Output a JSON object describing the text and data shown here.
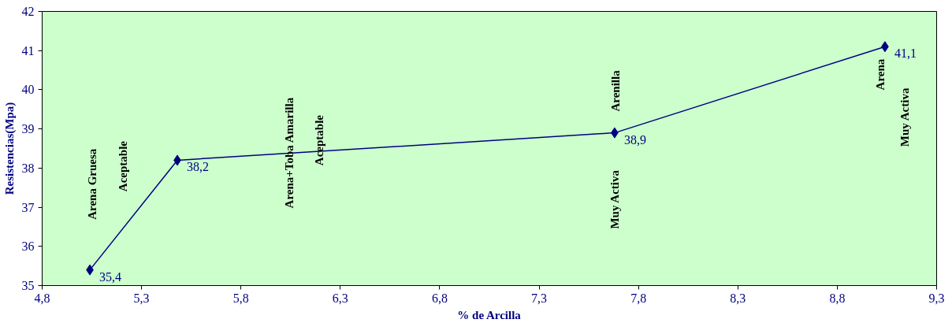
{
  "chart_data": {
    "type": "line",
    "xlabel": "% de Arcilla",
    "ylabel": "Resistencias(Mpa)",
    "x": [
      5.04,
      5.48,
      7.68,
      9.04
    ],
    "series": [
      {
        "color": "#000080",
        "values": [
          35.4,
          38.2,
          38.9,
          41.1
        ],
        "value_labels": [
          "35,4",
          "38,2",
          "38,9",
          "41,1"
        ]
      }
    ],
    "marker": "diamond",
    "line_style": "solid",
    "grid": false,
    "xlim": [
      4.8,
      9.3
    ],
    "xticks": [
      {
        "value": 4.8,
        "label": "4,8"
      },
      {
        "value": 5.3,
        "label": "5,3"
      },
      {
        "value": 5.8,
        "label": "5,8"
      },
      {
        "value": 6.3,
        "label": "6,3"
      },
      {
        "value": 6.8,
        "label": "6,8"
      },
      {
        "value": 7.3,
        "label": "7,3"
      },
      {
        "value": 7.8,
        "label": "7,8"
      },
      {
        "value": 8.3,
        "label": "8,3"
      },
      {
        "value": 8.8,
        "label": "8,8"
      },
      {
        "value": 9.3,
        "label": "9,3"
      }
    ],
    "ylim": [
      35,
      42
    ],
    "yticks": [
      35,
      36,
      37,
      38,
      39,
      40,
      41,
      42
    ],
    "annotations": [
      "Arena Gruesa",
      "Aceptable",
      "Arena+Toba Amarilla",
      "Aceptable",
      "Muy Activa",
      "Arenilla",
      "Arena",
      "Muy Activa"
    ]
  }
}
